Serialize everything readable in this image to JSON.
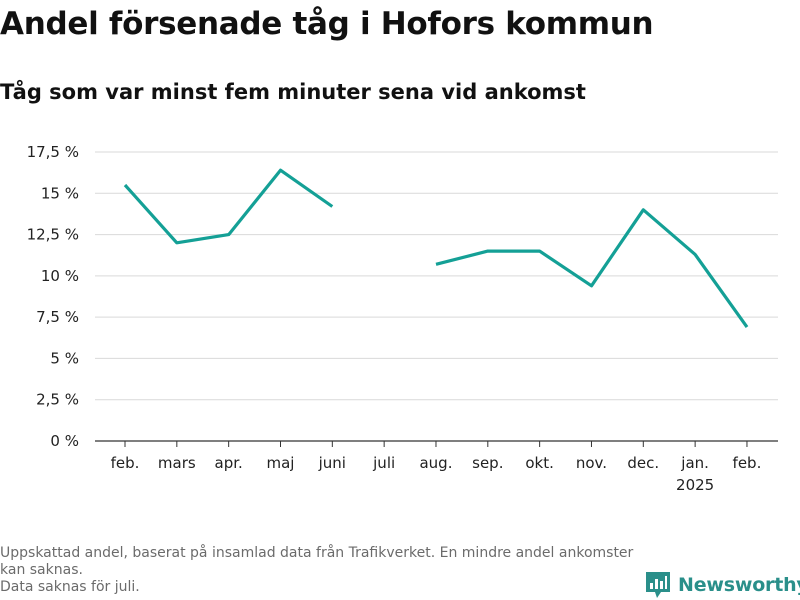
{
  "header": {
    "title": "Andel försenade tåg i Hofors kommun",
    "subtitle": "Tåg som var minst fem minuter sena vid ankomst"
  },
  "footnote": {
    "line1": "Uppskattad andel, baserat på insamlad data från Trafikverket. En mindre andel ankomster kan saknas.",
    "line2": "Data saknas för juli."
  },
  "brand": {
    "name": "Newsworthy",
    "icon": "newsworthy-logo-icon",
    "color": "#2a8f8a"
  },
  "chart_data": {
    "type": "line",
    "title": "Andel försenade tåg i Hofors kommun",
    "subtitle": "Tåg som var minst fem minuter sena vid ankomst",
    "xlabel": "",
    "ylabel": "",
    "categories": [
      "feb.",
      "mars",
      "apr.",
      "maj",
      "juni",
      "juli",
      "aug.",
      "sep.",
      "okt.",
      "nov.",
      "dec.",
      "jan.",
      "feb."
    ],
    "category_sublabels": [
      "",
      "",
      "",
      "",
      "",
      "",
      "",
      "",
      "",
      "",
      "",
      "2025",
      ""
    ],
    "series": [
      {
        "name": "",
        "color": "#14a096",
        "values": [
          15.5,
          12.0,
          12.5,
          16.4,
          14.2,
          null,
          10.7,
          11.5,
          11.5,
          9.4,
          14.0,
          11.3,
          6.9
        ]
      }
    ],
    "ylim": [
      0,
      17.5
    ],
    "yticks": [
      0,
      2.5,
      5,
      7.5,
      10,
      12.5,
      15,
      17.5
    ],
    "ytick_labels": [
      "0 %",
      "2,5 %",
      "5 %",
      "7,5 %",
      "10 %",
      "12,5 %",
      "15 %",
      "17,5 %"
    ],
    "grid": true,
    "gridColor": "#d9d9d9",
    "legend": "none"
  }
}
